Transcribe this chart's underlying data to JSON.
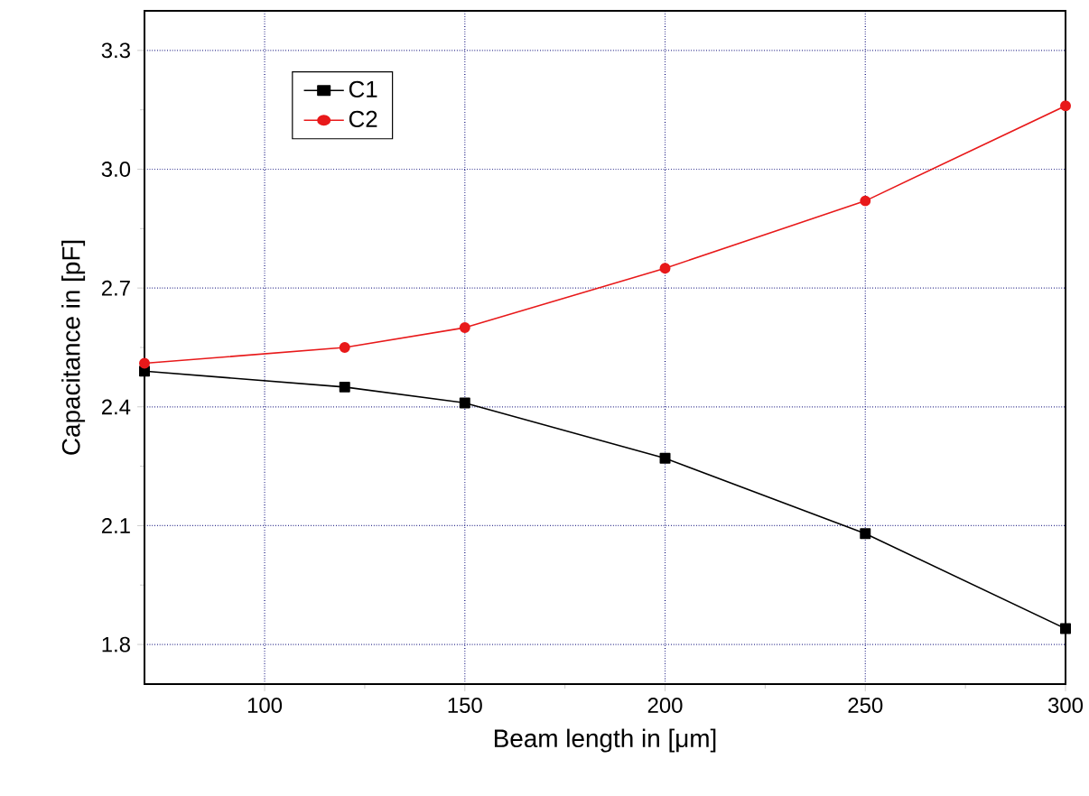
{
  "chart_data": {
    "type": "line",
    "xlabel": "Beam length in [μm]",
    "ylabel": "Capacitance in [pF]",
    "x": [
      70,
      120,
      150,
      200,
      250,
      300
    ],
    "series": [
      {
        "name": "C1",
        "color": "#000000",
        "marker": "square",
        "values": [
          2.49,
          2.45,
          2.41,
          2.27,
          2.08,
          1.84
        ]
      },
      {
        "name": "C2",
        "color": "#e8191a",
        "marker": "circle",
        "values": [
          2.51,
          2.55,
          2.6,
          2.75,
          2.92,
          3.16
        ]
      }
    ],
    "xlim": [
      70,
      300
    ],
    "ylim": [
      1.7,
      3.4
    ],
    "xticks": [
      100,
      150,
      200,
      250,
      300
    ],
    "yticks": [
      1.8,
      2.1,
      2.4,
      2.7,
      {
        "value": 3.0,
        "label": "3.0"
      },
      3.3
    ],
    "grid": true,
    "legend": "top left",
    "line_style": "solid"
  }
}
